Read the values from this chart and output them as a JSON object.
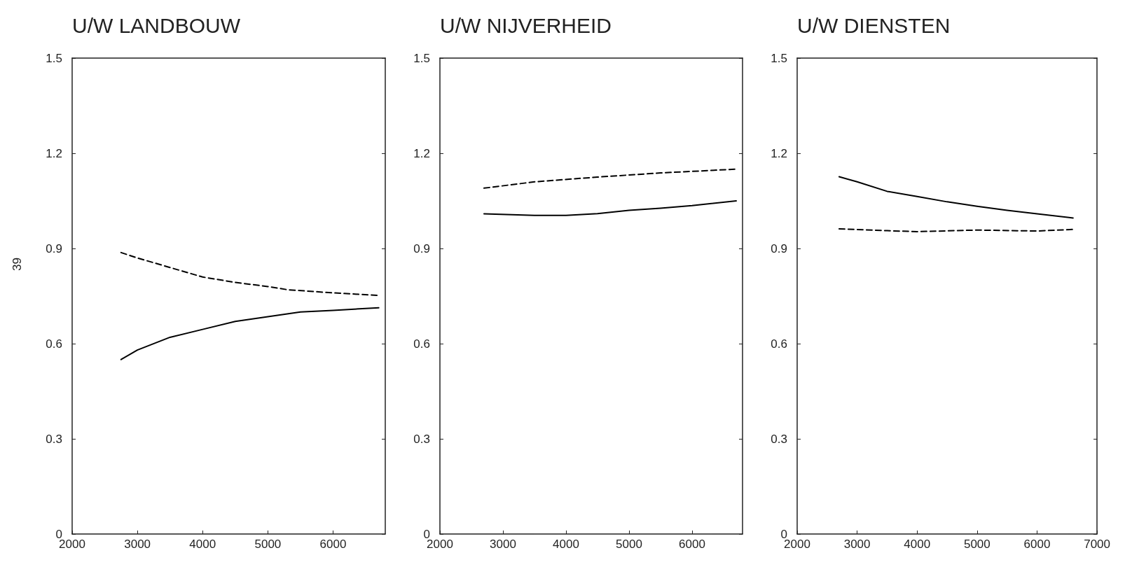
{
  "chart_data": [
    {
      "type": "line",
      "title": "U/W LANDBOUW",
      "xlim": [
        2000,
        6800
      ],
      "xticks": [
        2000,
        3000,
        4000,
        5000,
        6000
      ],
      "ylim": [
        0,
        1.5
      ],
      "yticks": [
        0,
        0.3,
        0.6,
        0.9,
        1.2,
        1.5
      ],
      "grid": false,
      "marker": "none",
      "annotations": [
        "39"
      ],
      "series": [
        {
          "color": "#000000",
          "line_style": "solid",
          "x": [
            2750,
            3000,
            3500,
            4000,
            4500,
            5000,
            5500,
            6000,
            6700
          ],
          "values": [
            0.55,
            0.58,
            0.62,
            0.645,
            0.67,
            0.685,
            0.7,
            0.705,
            0.713
          ]
        },
        {
          "color": "#000000",
          "line_style": "dashed",
          "x": [
            2750,
            3000,
            3500,
            4000,
            4500,
            5000,
            5300,
            6000,
            6700
          ],
          "values": [
            0.887,
            0.87,
            0.84,
            0.81,
            0.793,
            0.78,
            0.77,
            0.76,
            0.752
          ]
        }
      ]
    },
    {
      "type": "line",
      "title": "U/W NIJVERHEID",
      "xlim": [
        2000,
        6800
      ],
      "xticks": [
        2000,
        3000,
        4000,
        5000,
        6000
      ],
      "ylim": [
        0,
        1.5
      ],
      "yticks": [
        0,
        0.3,
        0.6,
        0.9,
        1.2,
        1.5
      ],
      "grid": false,
      "marker": "none",
      "series": [
        {
          "color": "#000000",
          "line_style": "solid",
          "x": [
            2700,
            3500,
            4000,
            4500,
            5000,
            5500,
            6000,
            6700
          ],
          "values": [
            1.009,
            1.004,
            1.004,
            1.01,
            1.02,
            1.027,
            1.035,
            1.05
          ]
        },
        {
          "color": "#000000",
          "line_style": "dashed",
          "x": [
            2700,
            3500,
            4500,
            5500,
            6700
          ],
          "values": [
            1.09,
            1.11,
            1.125,
            1.138,
            1.15
          ]
        }
      ]
    },
    {
      "type": "line",
      "title": "U/W DIENSTEN",
      "xlim": [
        2000,
        7000
      ],
      "xticks": [
        2000,
        3000,
        4000,
        5000,
        6000,
        7000
      ],
      "ylim": [
        0,
        1.5
      ],
      "yticks": [
        0,
        0.3,
        0.6,
        0.9,
        1.2,
        1.5
      ],
      "grid": false,
      "marker": "none",
      "series": [
        {
          "color": "#000000",
          "line_style": "solid",
          "x": [
            2700,
            3000,
            3500,
            4000,
            4500,
            5000,
            5500,
            6000,
            6600
          ],
          "values": [
            1.126,
            1.11,
            1.08,
            1.064,
            1.047,
            1.033,
            1.02,
            1.009,
            0.996
          ]
        },
        {
          "color": "#000000",
          "line_style": "dashed",
          "x": [
            2700,
            3500,
            4000,
            5000,
            6000,
            6600
          ],
          "values": [
            0.962,
            0.956,
            0.953,
            0.958,
            0.955,
            0.96
          ]
        }
      ]
    }
  ]
}
